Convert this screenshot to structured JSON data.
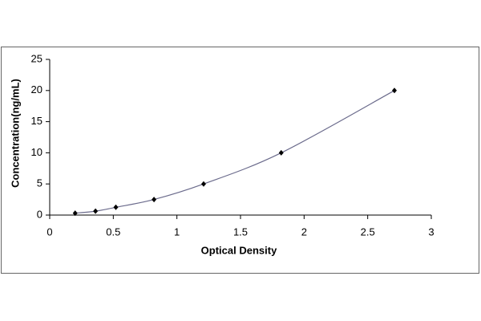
{
  "chart_data": {
    "type": "scatter",
    "x_label": "Optical Density",
    "y_label": "Concentration(ng/mL)",
    "series": [
      {
        "x": [
          0.2,
          0.36,
          0.52,
          0.82,
          1.21,
          1.82,
          2.71
        ],
        "values": [
          0.31,
          0.625,
          1.25,
          2.5,
          5,
          10,
          20
        ],
        "color": "#000000",
        "line_color": "#6b6b8c"
      }
    ],
    "trendline": true,
    "xlim": [
      0,
      3
    ],
    "xticks": [
      0,
      0.5,
      1,
      1.5,
      2,
      2.5,
      3
    ],
    "ylim": [
      0,
      25
    ],
    "yticks": [
      0,
      5,
      10,
      15,
      20,
      25
    ],
    "grid": false
  }
}
